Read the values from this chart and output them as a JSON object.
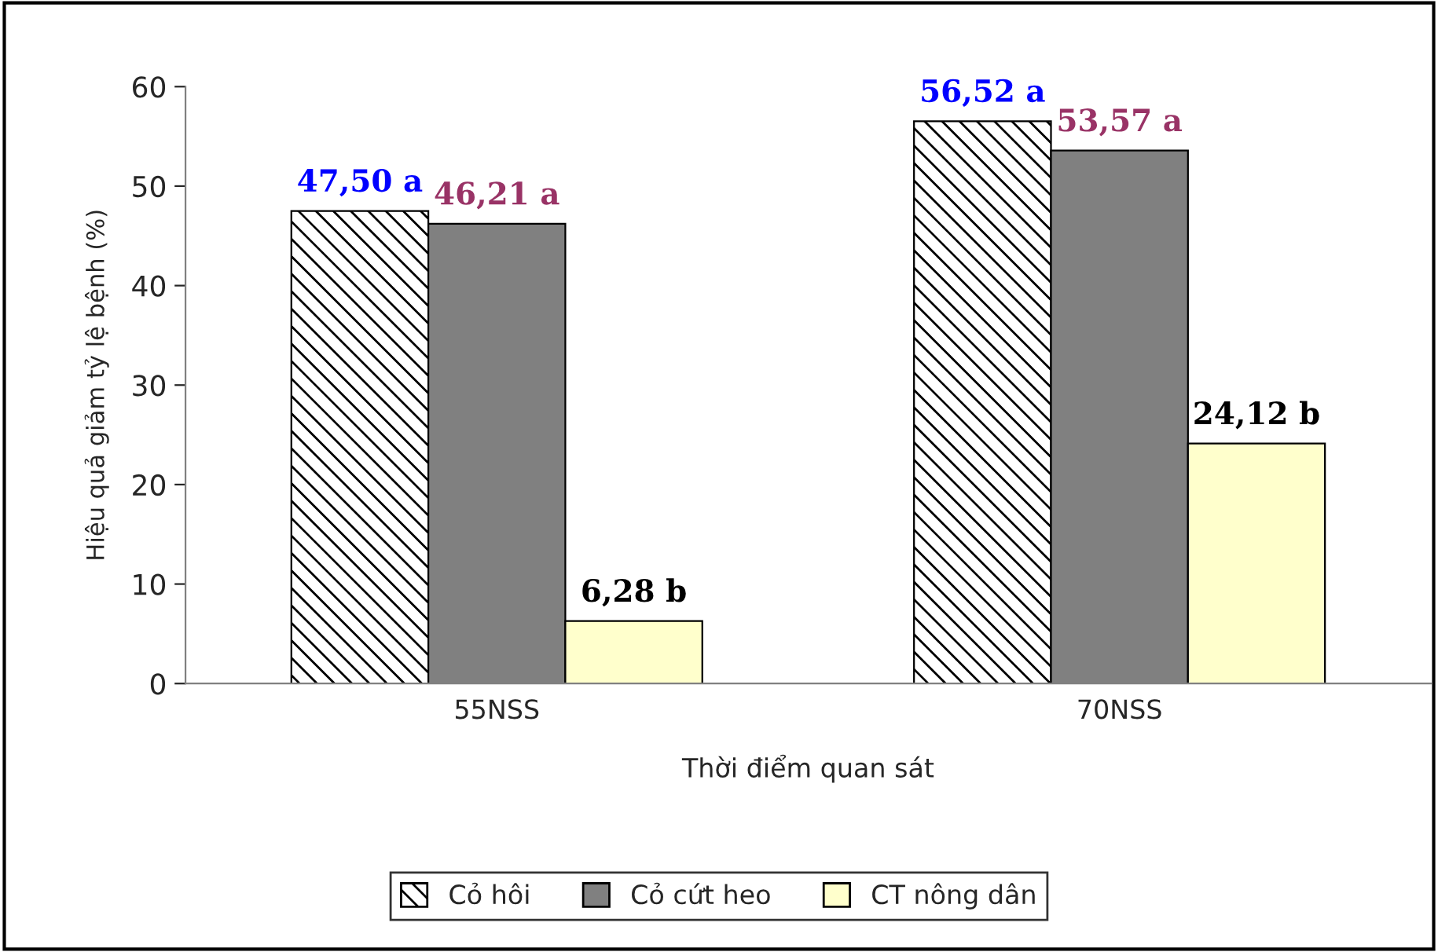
{
  "chart_data": {
    "type": "bar",
    "xlabel": "Thời điểm quan sát",
    "ylabel": "Hiệu quả giảm tỷ lệ bệnh (%)",
    "categories": [
      "55NSS",
      "70NSS"
    ],
    "series": [
      {
        "name": "Cỏ hôi",
        "color": "#000000",
        "values": [
          47.5,
          56.52
        ],
        "value_labels": [
          "47,50 a",
          "56,52 a"
        ]
      },
      {
        "name": "Cỏ cứt heo",
        "color": "#808080",
        "values": [
          46.21,
          53.57
        ],
        "value_labels": [
          "46,21 a",
          "53,57 a"
        ]
      },
      {
        "name": "CT nông dân",
        "color": "#ffffcc",
        "values": [
          6.28,
          24.12
        ],
        "value_labels": [
          "6,28 b",
          "24,12 b"
        ]
      }
    ],
    "ylim": [
      0,
      60
    ],
    "yticks": [
      0,
      10,
      20,
      30,
      40,
      50,
      60
    ],
    "grid": false,
    "legend": "bottom"
  }
}
